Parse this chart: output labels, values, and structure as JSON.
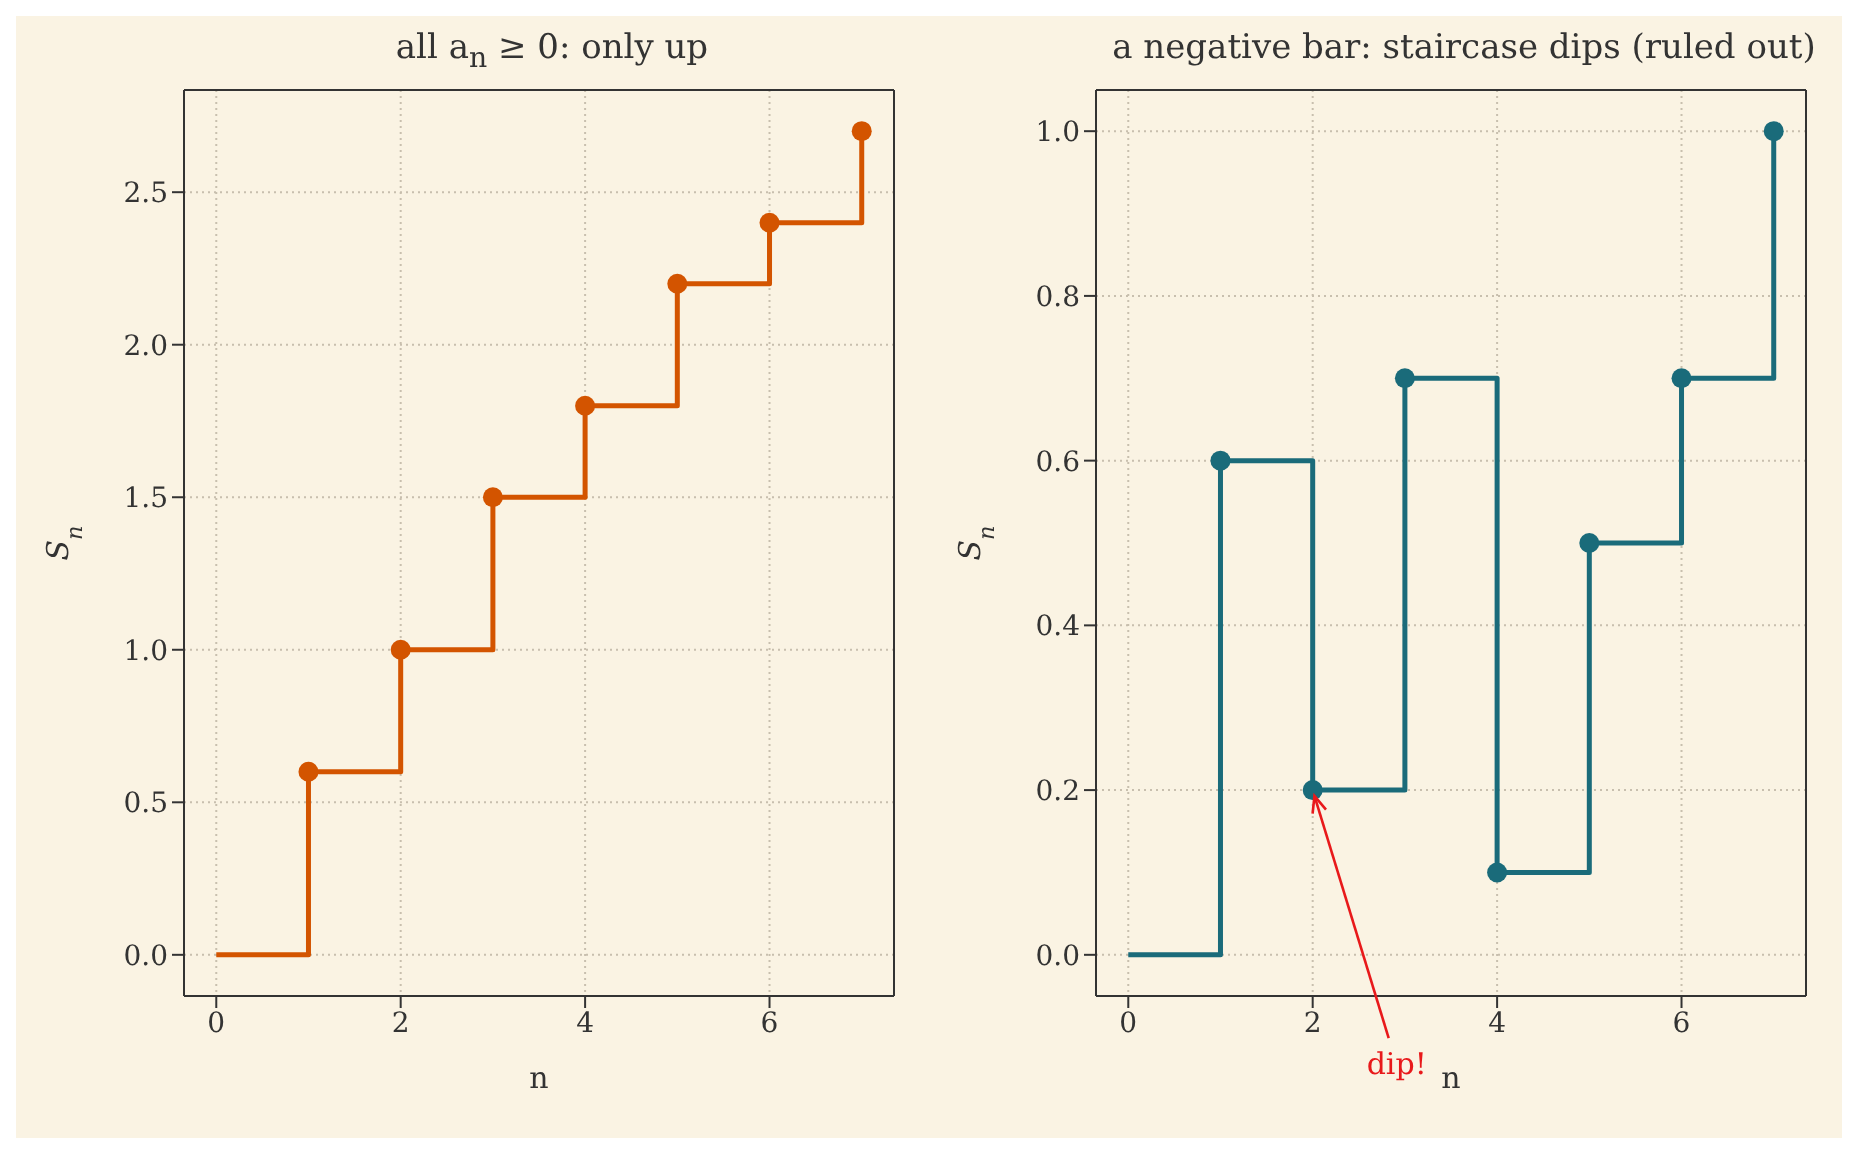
{
  "chart_data": [
    {
      "type": "step",
      "title": "all a$_{n}$ ≥ 0: only up",
      "xlabel": "n",
      "ylabel": "S$_{n}$",
      "x": [
        0,
        1,
        2,
        3,
        4,
        5,
        6,
        7
      ],
      "series": [
        {
          "color": "#d35400",
          "values": [
            0,
            0.6,
            1.0,
            1.5,
            1.8,
            2.2,
            2.4,
            2.7
          ]
        },
        {
          "type": "scatter",
          "color": "#d35400",
          "marker": "circle",
          "x": [
            1,
            2,
            3,
            4,
            5,
            6,
            7
          ],
          "values": [
            0.6,
            1.0,
            1.5,
            1.8,
            2.2,
            2.4,
            2.7
          ]
        }
      ],
      "xlim": [
        -0.35,
        7.35
      ],
      "ylim": [
        -0.135,
        2.835
      ],
      "xticks": [
        0,
        2,
        4,
        6
      ],
      "yticks": [
        {
          "value": 0,
          "label": "0.0"
        },
        0.5,
        {
          "value": 1,
          "label": "1.0"
        },
        1.5,
        {
          "value": 2,
          "label": "2.0"
        },
        2.5
      ],
      "grid": true
    },
    {
      "type": "step",
      "title": "a negative bar: staircase dips (ruled out)",
      "xlabel": "n",
      "ylabel": "S$_{n}$",
      "x": [
        0,
        1,
        2,
        3,
        4,
        5,
        6,
        7
      ],
      "series": [
        {
          "color": "#1a6b7a",
          "values": [
            0,
            0.6,
            0.2,
            0.7,
            0.1,
            0.5,
            0.7,
            1.0
          ]
        },
        {
          "type": "scatter",
          "color": "#1a6b7a",
          "marker": "circle",
          "x": [
            1,
            2,
            3,
            4,
            5,
            6,
            7
          ],
          "values": [
            0.6,
            0.2,
            0.7,
            0.1,
            0.5,
            0.7,
            1.0
          ]
        }
      ],
      "xlim": [
        -0.35,
        7.35
      ],
      "ylim": [
        -0.05,
        1.05
      ],
      "xticks": [
        0,
        2,
        4,
        6
      ],
      "yticks": [
        {
          "value": 0,
          "label": "0.0"
        },
        0.2,
        0.4,
        0.6,
        0.8,
        {
          "value": 1,
          "label": "1.0"
        }
      ],
      "grid": true,
      "annotations": [
        {
          "text": "dip!",
          "x": 2,
          "y": 0.2
        }
      ]
    }
  ]
}
